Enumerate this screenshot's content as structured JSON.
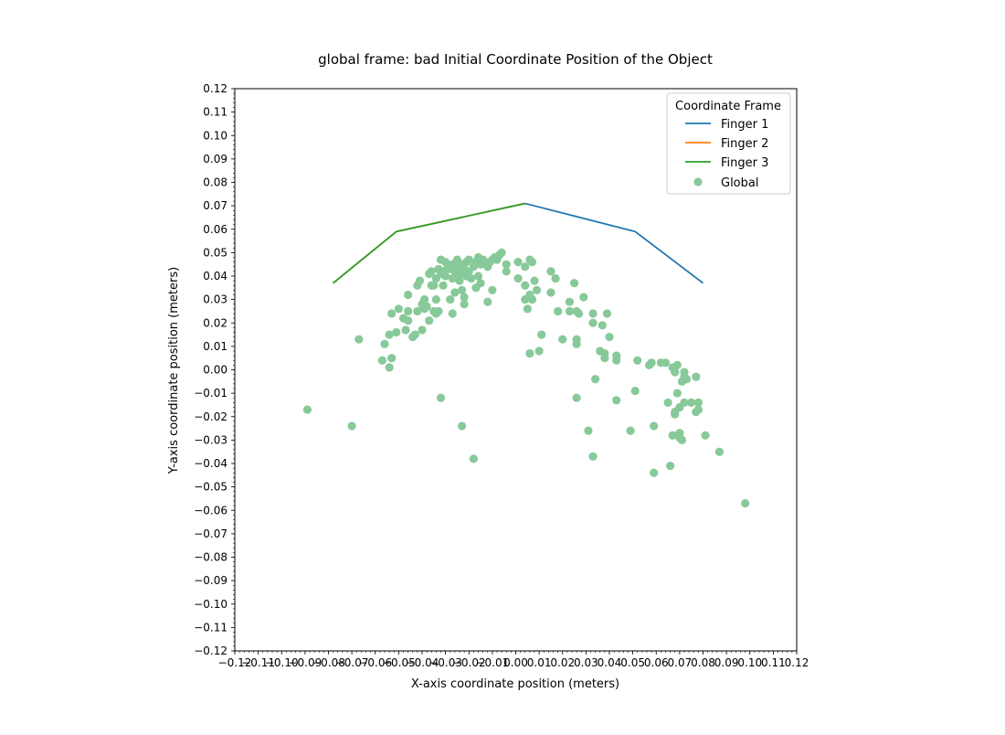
{
  "chart_data": {
    "type": "scatter",
    "title": "global frame: bad Initial Coordinate Position of the Object",
    "xlabel": "X-axis coordinate position (meters)",
    "ylabel": "Y-axis coordinate position (meters)",
    "xlim": [
      -0.12,
      0.12
    ],
    "ylim": [
      -0.12,
      0.12
    ],
    "xticks": [
      -0.12,
      -0.11,
      -0.1,
      -0.09,
      -0.08,
      -0.07,
      -0.06,
      -0.05,
      -0.04,
      -0.03,
      -0.02,
      -0.01,
      0.0,
      0.01,
      0.02,
      0.03,
      0.04,
      0.05,
      0.06,
      0.07,
      0.08,
      0.09,
      0.1,
      0.11,
      0.12
    ],
    "xtick_labels": [
      "−0.12",
      "−0.11",
      "−0.10",
      "−0.09",
      "−0.08",
      "−0.07",
      "−0.06",
      "−0.05",
      "−0.04",
      "−0.03",
      "−0.02",
      "−0.01",
      "0.00",
      "0.01",
      "0.02",
      "0.03",
      "0.04",
      "0.05",
      "0.06",
      "0.07",
      "0.08",
      "0.09",
      "0.10",
      "0.11",
      "0.12"
    ],
    "yticks": [
      0.12,
      0.11,
      0.1,
      0.09,
      0.08,
      0.07,
      0.06,
      0.05,
      0.04,
      0.03,
      0.02,
      0.01,
      0.0,
      -0.01,
      -0.02,
      -0.03,
      -0.04,
      -0.05,
      -0.06,
      -0.07,
      -0.08,
      -0.09,
      -0.1,
      -0.11,
      -0.12
    ],
    "ytick_labels": [
      "0.12",
      "0.11",
      "0.10",
      "0.09",
      "0.08",
      "0.07",
      "0.06",
      "0.05",
      "0.04",
      "0.03",
      "0.02",
      "0.01",
      "0.00",
      "−0.01",
      "−0.02",
      "−0.03",
      "−0.04",
      "−0.05",
      "−0.06",
      "−0.07",
      "−0.08",
      "−0.09",
      "−0.10",
      "−0.11",
      "−0.12"
    ],
    "grid": false,
    "legend": {
      "title": "Coordinate Frame",
      "placement": "top-right"
    },
    "lines": [
      {
        "name": "Finger 1",
        "color": "#1f77b4",
        "x": [
          0.004,
          0.051,
          0.08
        ],
        "y": [
          0.071,
          0.059,
          0.037
        ]
      },
      {
        "name": "Finger 2",
        "color": "#ff7f0e",
        "x": [
          0.004,
          -0.051,
          -0.078
        ],
        "y": [
          0.071,
          0.059,
          0.037
        ]
      },
      {
        "name": "Finger 3",
        "color": "#2ca02c",
        "x": [
          0.004,
          -0.051,
          -0.078
        ],
        "y": [
          0.071,
          0.059,
          0.037
        ]
      }
    ],
    "scatter": {
      "name": "Global",
      "color": "#88c999",
      "points": [
        [
          -0.089,
          -0.017
        ],
        [
          -0.07,
          -0.024
        ],
        [
          -0.067,
          0.013
        ],
        [
          -0.057,
          0.004
        ],
        [
          -0.056,
          0.011
        ],
        [
          -0.054,
          0.001
        ],
        [
          -0.054,
          0.015
        ],
        [
          -0.053,
          0.024
        ],
        [
          -0.053,
          0.005
        ],
        [
          -0.051,
          0.016
        ],
        [
          -0.05,
          0.026
        ],
        [
          -0.048,
          0.022
        ],
        [
          -0.047,
          0.017
        ],
        [
          -0.046,
          0.021
        ],
        [
          -0.046,
          0.025
        ],
        [
          -0.046,
          0.032
        ],
        [
          -0.044,
          0.014
        ],
        [
          -0.043,
          0.015
        ],
        [
          -0.042,
          0.025
        ],
        [
          -0.042,
          0.036
        ],
        [
          -0.041,
          0.038
        ],
        [
          -0.04,
          0.028
        ],
        [
          -0.04,
          0.017
        ],
        [
          -0.039,
          0.03
        ],
        [
          -0.039,
          0.026
        ],
        [
          -0.038,
          0.027
        ],
        [
          -0.037,
          0.021
        ],
        [
          -0.037,
          0.041
        ],
        [
          -0.036,
          0.042
        ],
        [
          -0.036,
          0.036
        ],
        [
          -0.035,
          0.036
        ],
        [
          -0.035,
          0.025
        ],
        [
          -0.034,
          0.024
        ],
        [
          -0.034,
          0.03
        ],
        [
          -0.034,
          0.039
        ],
        [
          -0.033,
          0.025
        ],
        [
          -0.033,
          0.043
        ],
        [
          -0.032,
          0.047
        ],
        [
          -0.032,
          0.041
        ],
        [
          -0.032,
          -0.012
        ],
        [
          -0.031,
          0.036
        ],
        [
          -0.031,
          0.042
        ],
        [
          -0.03,
          0.046
        ],
        [
          -0.03,
          0.04
        ],
        [
          -0.029,
          0.044
        ],
        [
          -0.028,
          0.043
        ],
        [
          -0.028,
          0.03
        ],
        [
          -0.027,
          0.024
        ],
        [
          -0.027,
          0.045
        ],
        [
          -0.027,
          0.039
        ],
        [
          -0.026,
          0.033
        ],
        [
          -0.026,
          0.042
        ],
        [
          -0.025,
          0.047
        ],
        [
          -0.025,
          0.041
        ],
        [
          -0.024,
          0.044
        ],
        [
          -0.024,
          0.038
        ],
        [
          -0.023,
          0.045
        ],
        [
          -0.023,
          0.041
        ],
        [
          -0.023,
          0.034
        ],
        [
          -0.023,
          -0.024
        ],
        [
          -0.022,
          0.043
        ],
        [
          -0.022,
          0.028
        ],
        [
          -0.022,
          0.031
        ],
        [
          -0.021,
          0.046
        ],
        [
          -0.021,
          0.04
        ],
        [
          -0.02,
          0.047
        ],
        [
          -0.02,
          0.042
        ],
        [
          -0.019,
          0.039
        ],
        [
          -0.018,
          0.044
        ],
        [
          -0.018,
          -0.038
        ],
        [
          -0.017,
          0.035
        ],
        [
          -0.017,
          0.046
        ],
        [
          -0.016,
          0.048
        ],
        [
          -0.016,
          0.04
        ],
        [
          -0.015,
          0.037
        ],
        [
          -0.015,
          0.045
        ],
        [
          -0.014,
          0.047
        ],
        [
          -0.013,
          0.046
        ],
        [
          -0.012,
          0.044
        ],
        [
          -0.012,
          0.029
        ],
        [
          -0.011,
          0.046
        ],
        [
          -0.01,
          0.047
        ],
        [
          -0.01,
          0.034
        ],
        [
          -0.009,
          0.048
        ],
        [
          -0.008,
          0.047
        ],
        [
          -0.007,
          0.049
        ],
        [
          -0.006,
          0.05
        ],
        [
          -0.004,
          0.045
        ],
        [
          -0.004,
          0.042
        ],
        [
          0.001,
          0.046
        ],
        [
          0.001,
          0.039
        ],
        [
          0.004,
          0.044
        ],
        [
          0.004,
          0.036
        ],
        [
          0.004,
          0.03
        ],
        [
          0.005,
          0.026
        ],
        [
          0.006,
          0.047
        ],
        [
          0.006,
          0.032
        ],
        [
          0.006,
          0.007
        ],
        [
          0.007,
          0.046
        ],
        [
          0.007,
          0.03
        ],
        [
          0.008,
          0.038
        ],
        [
          0.009,
          0.034
        ],
        [
          0.01,
          0.008
        ],
        [
          0.011,
          0.015
        ],
        [
          0.015,
          0.042
        ],
        [
          0.015,
          0.033
        ],
        [
          0.017,
          0.039
        ],
        [
          0.018,
          0.025
        ],
        [
          0.02,
          0.013
        ],
        [
          0.023,
          0.029
        ],
        [
          0.023,
          0.025
        ],
        [
          0.025,
          0.037
        ],
        [
          0.026,
          0.013
        ],
        [
          0.026,
          0.011
        ],
        [
          0.026,
          0.025
        ],
        [
          0.026,
          -0.012
        ],
        [
          0.027,
          0.024
        ],
        [
          0.029,
          0.031
        ],
        [
          0.031,
          -0.026
        ],
        [
          0.033,
          -0.037
        ],
        [
          0.033,
          0.02
        ],
        [
          0.033,
          0.024
        ],
        [
          0.034,
          -0.004
        ],
        [
          0.036,
          0.008
        ],
        [
          0.037,
          0.019
        ],
        [
          0.038,
          0.005
        ],
        [
          0.038,
          0.007
        ],
        [
          0.039,
          0.024
        ],
        [
          0.04,
          0.014
        ],
        [
          0.043,
          0.006
        ],
        [
          0.043,
          0.004
        ],
        [
          0.043,
          -0.013
        ],
        [
          0.049,
          -0.026
        ],
        [
          0.051,
          -0.009
        ],
        [
          0.052,
          0.004
        ],
        [
          0.057,
          0.002
        ],
        [
          0.058,
          0.003
        ],
        [
          0.059,
          -0.024
        ],
        [
          0.059,
          -0.044
        ],
        [
          0.062,
          0.003
        ],
        [
          0.064,
          0.003
        ],
        [
          0.065,
          -0.014
        ],
        [
          0.066,
          -0.041
        ],
        [
          0.067,
          0.001
        ],
        [
          0.067,
          -0.028
        ],
        [
          0.068,
          -0.018
        ],
        [
          0.068,
          -0.019
        ],
        [
          0.068,
          -0.001
        ],
        [
          0.069,
          0.002
        ],
        [
          0.069,
          -0.01
        ],
        [
          0.07,
          -0.027
        ],
        [
          0.07,
          -0.029
        ],
        [
          0.07,
          -0.016
        ],
        [
          0.071,
          -0.005
        ],
        [
          0.071,
          -0.03
        ],
        [
          0.072,
          -0.001
        ],
        [
          0.072,
          -0.014
        ],
        [
          0.072,
          -0.003
        ],
        [
          0.073,
          -0.004
        ],
        [
          0.075,
          -0.014
        ],
        [
          0.077,
          -0.018
        ],
        [
          0.077,
          -0.003
        ],
        [
          0.078,
          -0.017
        ],
        [
          0.078,
          -0.014
        ],
        [
          0.081,
          -0.028
        ],
        [
          0.087,
          -0.035
        ],
        [
          0.098,
          -0.057
        ]
      ]
    }
  }
}
